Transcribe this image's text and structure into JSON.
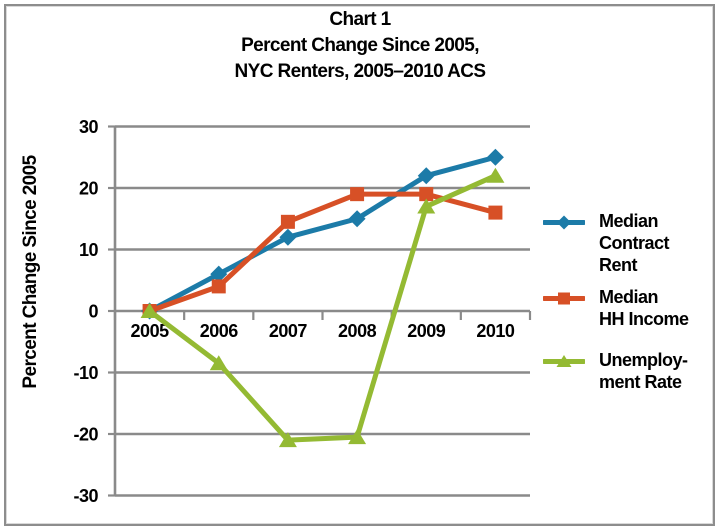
{
  "figure": {
    "border_color": "#8d8d8d",
    "background": "#ffffff"
  },
  "chart_data": {
    "type": "line",
    "title": "Chart 1 Percent Change Since 2005, NYC Renters, 2005–2010 ACS",
    "title_lines": [
      "Chart 1",
      "Percent Change Since 2005,",
      "NYC Renters, 2005–2010 ACS"
    ],
    "ylabel": "Percent Change Since 2005",
    "xlabel": "",
    "categories": [
      "2005",
      "2006",
      "2007",
      "2008",
      "2009",
      "2010"
    ],
    "series": [
      {
        "name": "Median Contract Rent",
        "legend_lines": [
          "Median",
          "Contract",
          "Rent"
        ],
        "color": "#1c7ba8",
        "marker": "diamond",
        "values": [
          0,
          6,
          12,
          15,
          22,
          25
        ]
      },
      {
        "name": "Median HH Income",
        "legend_lines": [
          "Median",
          "HH Income"
        ],
        "color": "#d75026",
        "marker": "square",
        "values": [
          0,
          4,
          14.5,
          19,
          19,
          16
        ]
      },
      {
        "name": "Unemployment Rate",
        "legend_lines": [
          "Unemploy-",
          "ment Rate"
        ],
        "color": "#94ba33",
        "marker": "triangle",
        "values": [
          0,
          -8.5,
          -21,
          -20.5,
          17,
          22
        ]
      }
    ],
    "ylim": [
      -30,
      30
    ],
    "yticks": [
      30,
      20,
      10,
      0,
      -10,
      -20,
      -30
    ],
    "grid": true,
    "grid_color": "#8a8a8a",
    "axis_color": "#8a8a8a",
    "legend_position": "right"
  }
}
